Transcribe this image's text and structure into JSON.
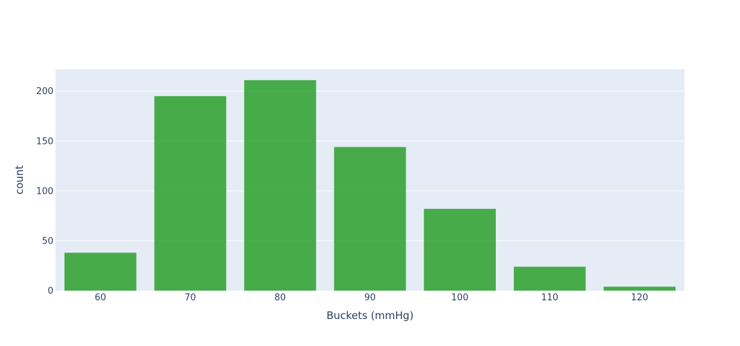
{
  "chart_data": {
    "type": "bar",
    "categories": [
      "60",
      "70",
      "80",
      "90",
      "100",
      "110",
      "120"
    ],
    "values": [
      38,
      195,
      211,
      144,
      82,
      24,
      4
    ],
    "title": "",
    "xlabel": "Buckets (mmHg)",
    "ylabel": "count",
    "ylim": [
      0,
      222
    ],
    "yticks": [
      0,
      50,
      100,
      150,
      200
    ],
    "grid": true,
    "bar_color": "#2ca02c",
    "plot_bg": "#e5ecf6",
    "grid_color": "#ffffff"
  }
}
